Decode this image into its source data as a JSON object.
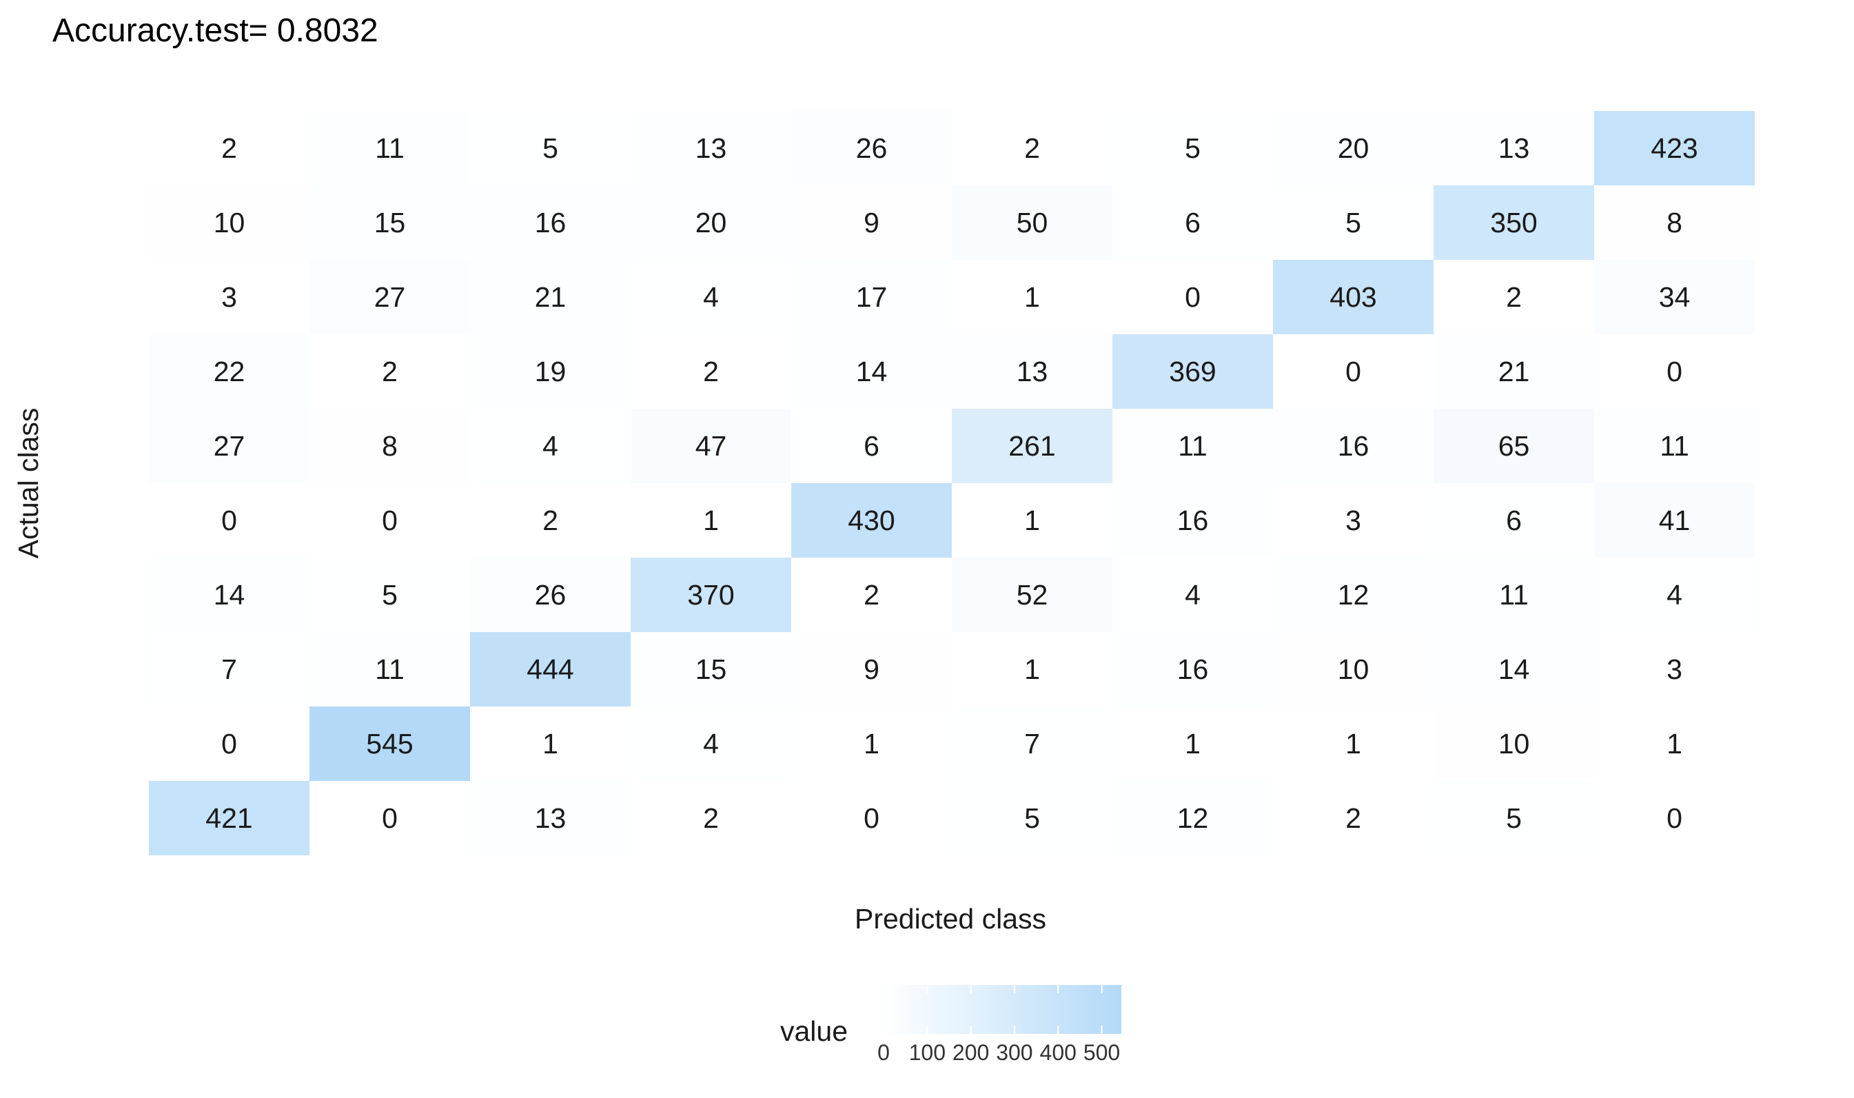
{
  "chart_data": {
    "type": "heatmap",
    "title": "Accuracy.test= 0.8032",
    "xlabel": "Predicted class",
    "ylabel": "Actual class",
    "rows": [
      [
        2,
        11,
        5,
        13,
        26,
        2,
        5,
        20,
        13,
        423
      ],
      [
        10,
        15,
        16,
        20,
        9,
        50,
        6,
        5,
        350,
        8
      ],
      [
        3,
        27,
        21,
        4,
        17,
        1,
        0,
        403,
        2,
        34
      ],
      [
        22,
        2,
        19,
        2,
        14,
        13,
        369,
        0,
        21,
        0
      ],
      [
        27,
        8,
        4,
        47,
        6,
        261,
        11,
        16,
        65,
        11
      ],
      [
        0,
        0,
        2,
        1,
        430,
        1,
        16,
        3,
        6,
        41
      ],
      [
        14,
        5,
        26,
        370,
        2,
        52,
        4,
        12,
        11,
        4
      ],
      [
        7,
        11,
        444,
        15,
        9,
        1,
        16,
        10,
        14,
        3
      ],
      [
        0,
        545,
        1,
        4,
        1,
        7,
        1,
        1,
        10,
        1
      ],
      [
        421,
        0,
        13,
        2,
        0,
        5,
        12,
        2,
        5,
        0
      ]
    ],
    "value_range": [
      0,
      545
    ],
    "color_low": "#ffffff",
    "color_high": "#b3d9f7",
    "legend": {
      "title": "value",
      "ticks": [
        0,
        100,
        200,
        300,
        400,
        500
      ],
      "tick_labels": [
        "0",
        "100",
        "200",
        "300",
        "400",
        "500"
      ],
      "position": "bottom"
    },
    "grid": false
  }
}
